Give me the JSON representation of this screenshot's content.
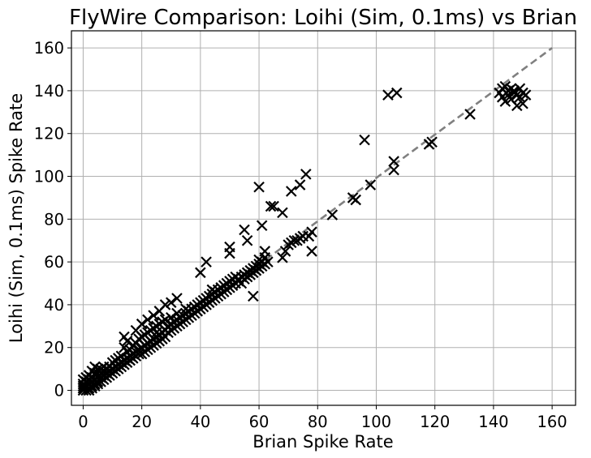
{
  "chart_data": {
    "type": "scatter",
    "title": "FlyWire Comparison: Loihi (Sim, 0.1ms) vs Brian",
    "xlabel": "Brian Spike Rate",
    "ylabel": "Loihi (Sim, 0.1ms) Spike Rate",
    "xlim": [
      -4,
      168
    ],
    "ylim": [
      -7,
      168
    ],
    "xticks": [
      0,
      20,
      40,
      60,
      80,
      100,
      120,
      140,
      160
    ],
    "yticks": [
      0,
      20,
      40,
      60,
      80,
      100,
      120,
      140,
      160
    ],
    "grid": true,
    "marker": "x",
    "marker_color": "#000000",
    "reference_line": {
      "style": "dashed",
      "color": "#808080",
      "from": [
        0,
        -2
      ],
      "to": [
        160,
        160
      ]
    },
    "series": [
      {
        "points": [
          [
            0,
            0
          ],
          [
            0,
            1
          ],
          [
            0,
            2
          ],
          [
            0,
            3
          ],
          [
            0,
            5
          ],
          [
            1,
            0
          ],
          [
            1,
            2
          ],
          [
            1,
            4
          ],
          [
            1,
            6
          ],
          [
            2,
            0
          ],
          [
            2,
            1
          ],
          [
            2,
            3
          ],
          [
            2,
            5
          ],
          [
            2,
            7
          ],
          [
            3,
            1
          ],
          [
            3,
            2
          ],
          [
            3,
            4
          ],
          [
            3,
            6
          ],
          [
            3,
            9
          ],
          [
            4,
            2
          ],
          [
            4,
            3
          ],
          [
            4,
            5
          ],
          [
            4,
            8
          ],
          [
            4,
            11
          ],
          [
            5,
            3
          ],
          [
            5,
            4
          ],
          [
            5,
            6
          ],
          [
            5,
            8
          ],
          [
            5,
            10
          ],
          [
            6,
            4
          ],
          [
            6,
            6
          ],
          [
            6,
            8
          ],
          [
            6,
            10
          ],
          [
            7,
            5
          ],
          [
            7,
            7
          ],
          [
            7,
            9
          ],
          [
            7,
            11
          ],
          [
            8,
            6
          ],
          [
            8,
            8
          ],
          [
            8,
            10
          ],
          [
            9,
            7
          ],
          [
            9,
            9
          ],
          [
            9,
            11
          ],
          [
            10,
            8
          ],
          [
            10,
            10
          ],
          [
            10,
            13
          ],
          [
            11,
            9
          ],
          [
            11,
            11
          ],
          [
            11,
            14
          ],
          [
            12,
            10
          ],
          [
            12,
            12
          ],
          [
            12,
            15
          ],
          [
            13,
            11
          ],
          [
            13,
            13
          ],
          [
            13,
            16
          ],
          [
            14,
            12
          ],
          [
            14,
            14
          ],
          [
            14,
            20
          ],
          [
            14,
            25
          ],
          [
            15,
            13
          ],
          [
            15,
            15
          ],
          [
            15,
            18
          ],
          [
            15,
            23
          ],
          [
            16,
            14
          ],
          [
            16,
            16
          ],
          [
            16,
            19
          ],
          [
            17,
            15
          ],
          [
            17,
            17
          ],
          [
            17,
            21
          ],
          [
            18,
            16
          ],
          [
            18,
            18
          ],
          [
            18,
            22
          ],
          [
            18,
            28
          ],
          [
            19,
            17
          ],
          [
            19,
            19
          ],
          [
            19,
            24
          ],
          [
            20,
            17
          ],
          [
            20,
            20
          ],
          [
            20,
            25
          ],
          [
            20,
            31
          ],
          [
            21,
            18
          ],
          [
            21,
            21
          ],
          [
            21,
            26
          ],
          [
            22,
            19
          ],
          [
            22,
            22
          ],
          [
            22,
            27
          ],
          [
            22,
            33
          ],
          [
            23,
            20
          ],
          [
            23,
            23
          ],
          [
            23,
            28
          ],
          [
            24,
            21
          ],
          [
            24,
            24
          ],
          [
            24,
            29
          ],
          [
            24,
            35
          ],
          [
            25,
            22
          ],
          [
            25,
            25
          ],
          [
            25,
            27
          ],
          [
            25,
            30
          ],
          [
            26,
            23
          ],
          [
            26,
            26
          ],
          [
            26,
            31
          ],
          [
            26,
            37
          ],
          [
            27,
            24
          ],
          [
            27,
            27
          ],
          [
            27,
            32
          ],
          [
            28,
            25
          ],
          [
            28,
            28
          ],
          [
            28,
            33
          ],
          [
            28,
            40
          ],
          [
            29,
            27
          ],
          [
            29,
            30
          ],
          [
            30,
            28
          ],
          [
            30,
            31
          ],
          [
            30,
            34
          ],
          [
            30,
            41
          ],
          [
            31,
            29
          ],
          [
            31,
            32
          ],
          [
            32,
            30
          ],
          [
            32,
            33
          ],
          [
            32,
            36
          ],
          [
            32,
            43
          ],
          [
            33,
            31
          ],
          [
            33,
            34
          ],
          [
            34,
            32
          ],
          [
            34,
            35
          ],
          [
            35,
            33
          ],
          [
            35,
            36
          ],
          [
            35,
            38
          ],
          [
            36,
            34
          ],
          [
            36,
            37
          ],
          [
            37,
            35
          ],
          [
            37,
            38
          ],
          [
            38,
            36
          ],
          [
            38,
            39
          ],
          [
            39,
            37
          ],
          [
            39,
            40
          ],
          [
            40,
            38
          ],
          [
            40,
            41
          ],
          [
            40,
            55
          ],
          [
            41,
            39
          ],
          [
            41,
            42
          ],
          [
            42,
            40
          ],
          [
            42,
            43
          ],
          [
            42,
            60
          ],
          [
            43,
            41
          ],
          [
            43,
            44
          ],
          [
            44,
            42
          ],
          [
            44,
            45
          ],
          [
            44,
            47
          ],
          [
            45,
            43
          ],
          [
            45,
            46
          ],
          [
            46,
            44
          ],
          [
            46,
            47
          ],
          [
            47,
            45
          ],
          [
            47,
            48
          ],
          [
            48,
            46
          ],
          [
            48,
            49
          ],
          [
            49,
            47
          ],
          [
            49,
            50
          ],
          [
            50,
            48
          ],
          [
            50,
            51
          ],
          [
            50,
            64
          ],
          [
            50,
            67
          ],
          [
            51,
            49
          ],
          [
            51,
            52
          ],
          [
            52,
            50
          ],
          [
            52,
            53
          ],
          [
            53,
            51
          ],
          [
            53,
            52
          ],
          [
            54,
            50
          ],
          [
            54,
            53
          ],
          [
            55,
            52
          ],
          [
            55,
            54
          ],
          [
            55,
            75
          ],
          [
            56,
            53
          ],
          [
            56,
            55
          ],
          [
            56,
            70
          ],
          [
            57,
            54
          ],
          [
            57,
            56
          ],
          [
            58,
            55
          ],
          [
            58,
            57
          ],
          [
            58,
            44
          ],
          [
            59,
            56
          ],
          [
            59,
            58
          ],
          [
            60,
            57
          ],
          [
            60,
            59
          ],
          [
            60,
            61
          ],
          [
            60,
            95
          ],
          [
            61,
            58
          ],
          [
            61,
            60
          ],
          [
            61,
            77
          ],
          [
            62,
            59
          ],
          [
            62,
            62
          ],
          [
            62,
            65
          ],
          [
            63,
            60
          ],
          [
            64,
            86
          ],
          [
            65,
            86
          ],
          [
            68,
            62
          ],
          [
            68,
            83
          ],
          [
            69,
            65
          ],
          [
            70,
            68
          ],
          [
            71,
            69
          ],
          [
            71,
            93
          ],
          [
            72,
            70
          ],
          [
            73,
            70
          ],
          [
            74,
            71
          ],
          [
            74,
            96
          ],
          [
            75,
            72
          ],
          [
            76,
            101
          ],
          [
            77,
            72
          ],
          [
            78,
            74
          ],
          [
            78,
            65
          ],
          [
            85,
            82
          ],
          [
            92,
            90
          ],
          [
            93,
            89
          ],
          [
            96,
            117
          ],
          [
            98,
            96
          ],
          [
            104,
            138
          ],
          [
            106,
            103
          ],
          [
            106,
            107
          ],
          [
            107,
            139
          ],
          [
            118,
            115
          ],
          [
            119,
            116
          ],
          [
            132,
            129
          ],
          [
            142,
            139
          ],
          [
            143,
            141
          ],
          [
            143,
            137
          ],
          [
            144,
            142
          ],
          [
            144,
            135
          ],
          [
            145,
            140
          ],
          [
            145,
            138
          ],
          [
            146,
            141
          ],
          [
            146,
            136
          ],
          [
            147,
            140
          ],
          [
            147,
            139
          ],
          [
            148,
            133
          ],
          [
            148,
            138
          ],
          [
            149,
            141
          ],
          [
            149,
            137
          ],
          [
            150,
            139
          ],
          [
            150,
            134
          ],
          [
            151,
            138
          ]
        ]
      }
    ]
  }
}
